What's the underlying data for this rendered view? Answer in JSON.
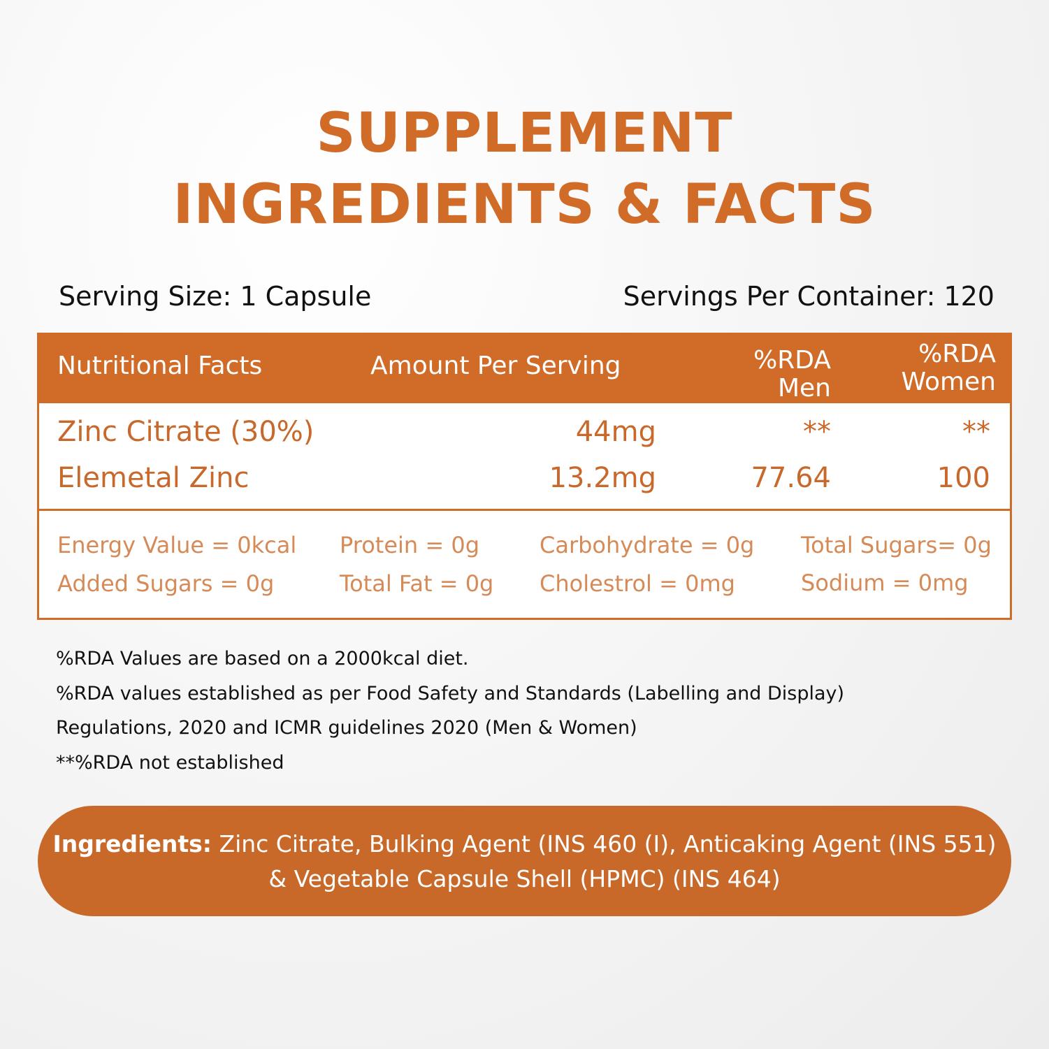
{
  "title": {
    "line1": "SUPPLEMENT",
    "line2": "INGREDIENTS & FACTS"
  },
  "serving": {
    "size": "Serving Size: 1 Capsule",
    "per_container": "Servings Per Container: 120"
  },
  "table": {
    "headers": {
      "facts": "Nutritional Facts",
      "amount": "Amount Per Serving",
      "rda_men_line1": "%RDA",
      "rda_men_line2": "Men",
      "rda_women_line1": "%RDA",
      "rda_women_line2": "Women"
    },
    "rows": [
      {
        "name": "Zinc Citrate (30%)",
        "amount": "44mg",
        "rda_men": "**",
        "rda_women": "**"
      },
      {
        "name": "Elemetal Zinc",
        "amount": "13.2mg",
        "rda_men": "77.64",
        "rda_women": "100"
      }
    ],
    "facts": [
      "Energy Value = 0kcal",
      "Protein = 0g",
      "Carbohydrate = 0g",
      "Total Sugars= 0g",
      "Added Sugars = 0g",
      "Total Fat = 0g",
      "Cholestrol = 0mg",
      "Sodium = 0mg"
    ]
  },
  "notes": [
    "%RDA Values are based on a 2000kcal diet.",
    "%RDA values established as per Food Safety and Standards (Labelling and Display)",
    "Regulations, 2020 and ICMR guidelines 2020 (Men & Women)",
    "**%RDA not established"
  ],
  "ingredients": {
    "label": "Ingredients:",
    "line1": "Zinc Citrate, Bulking Agent (INS 460 (I), Anticaking Agent (INS 551)",
    "line2": "& Vegetable Capsule Shell (HPMC) (INS 464)"
  },
  "colors": {
    "accent": "#d06b28",
    "text": "#111111",
    "facts_text": "#d58a57"
  }
}
